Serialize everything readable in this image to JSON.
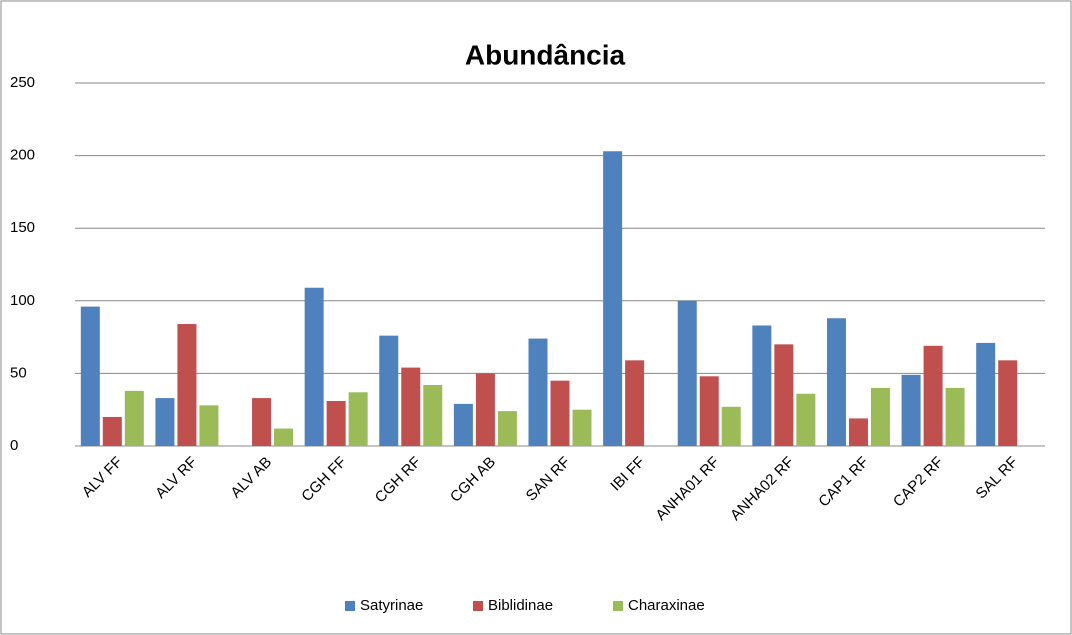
{
  "chart_data": {
    "type": "bar",
    "title": "Abundância",
    "categories": [
      "ALV FF",
      "ALV RF",
      "ALV AB",
      "CGH FF",
      "CGH RF",
      "CGH AB",
      "SAN RF",
      "IBI FF",
      "ANHA01 RF",
      "ANHA02 RF",
      "CAP1 RF",
      "CAP2 RF",
      "SAL RF"
    ],
    "series": [
      {
        "name": "Satyrinae",
        "color": "#4f81bd",
        "values": [
          96,
          33,
          0,
          109,
          76,
          29,
          74,
          203,
          100,
          83,
          88,
          49,
          71
        ]
      },
      {
        "name": "Biblidinae",
        "color": "#c0504d",
        "values": [
          20,
          84,
          33,
          31,
          54,
          50,
          45,
          59,
          48,
          70,
          19,
          69,
          59
        ]
      },
      {
        "name": "Charaxinae",
        "color": "#9bbb59",
        "values": [
          38,
          28,
          12,
          37,
          42,
          24,
          25,
          0,
          27,
          36,
          40,
          40,
          0
        ]
      }
    ],
    "ylim": [
      0,
      250
    ],
    "yticks": [
      0,
      50,
      100,
      150,
      200,
      250
    ],
    "grid": true,
    "legend": "bottom"
  }
}
